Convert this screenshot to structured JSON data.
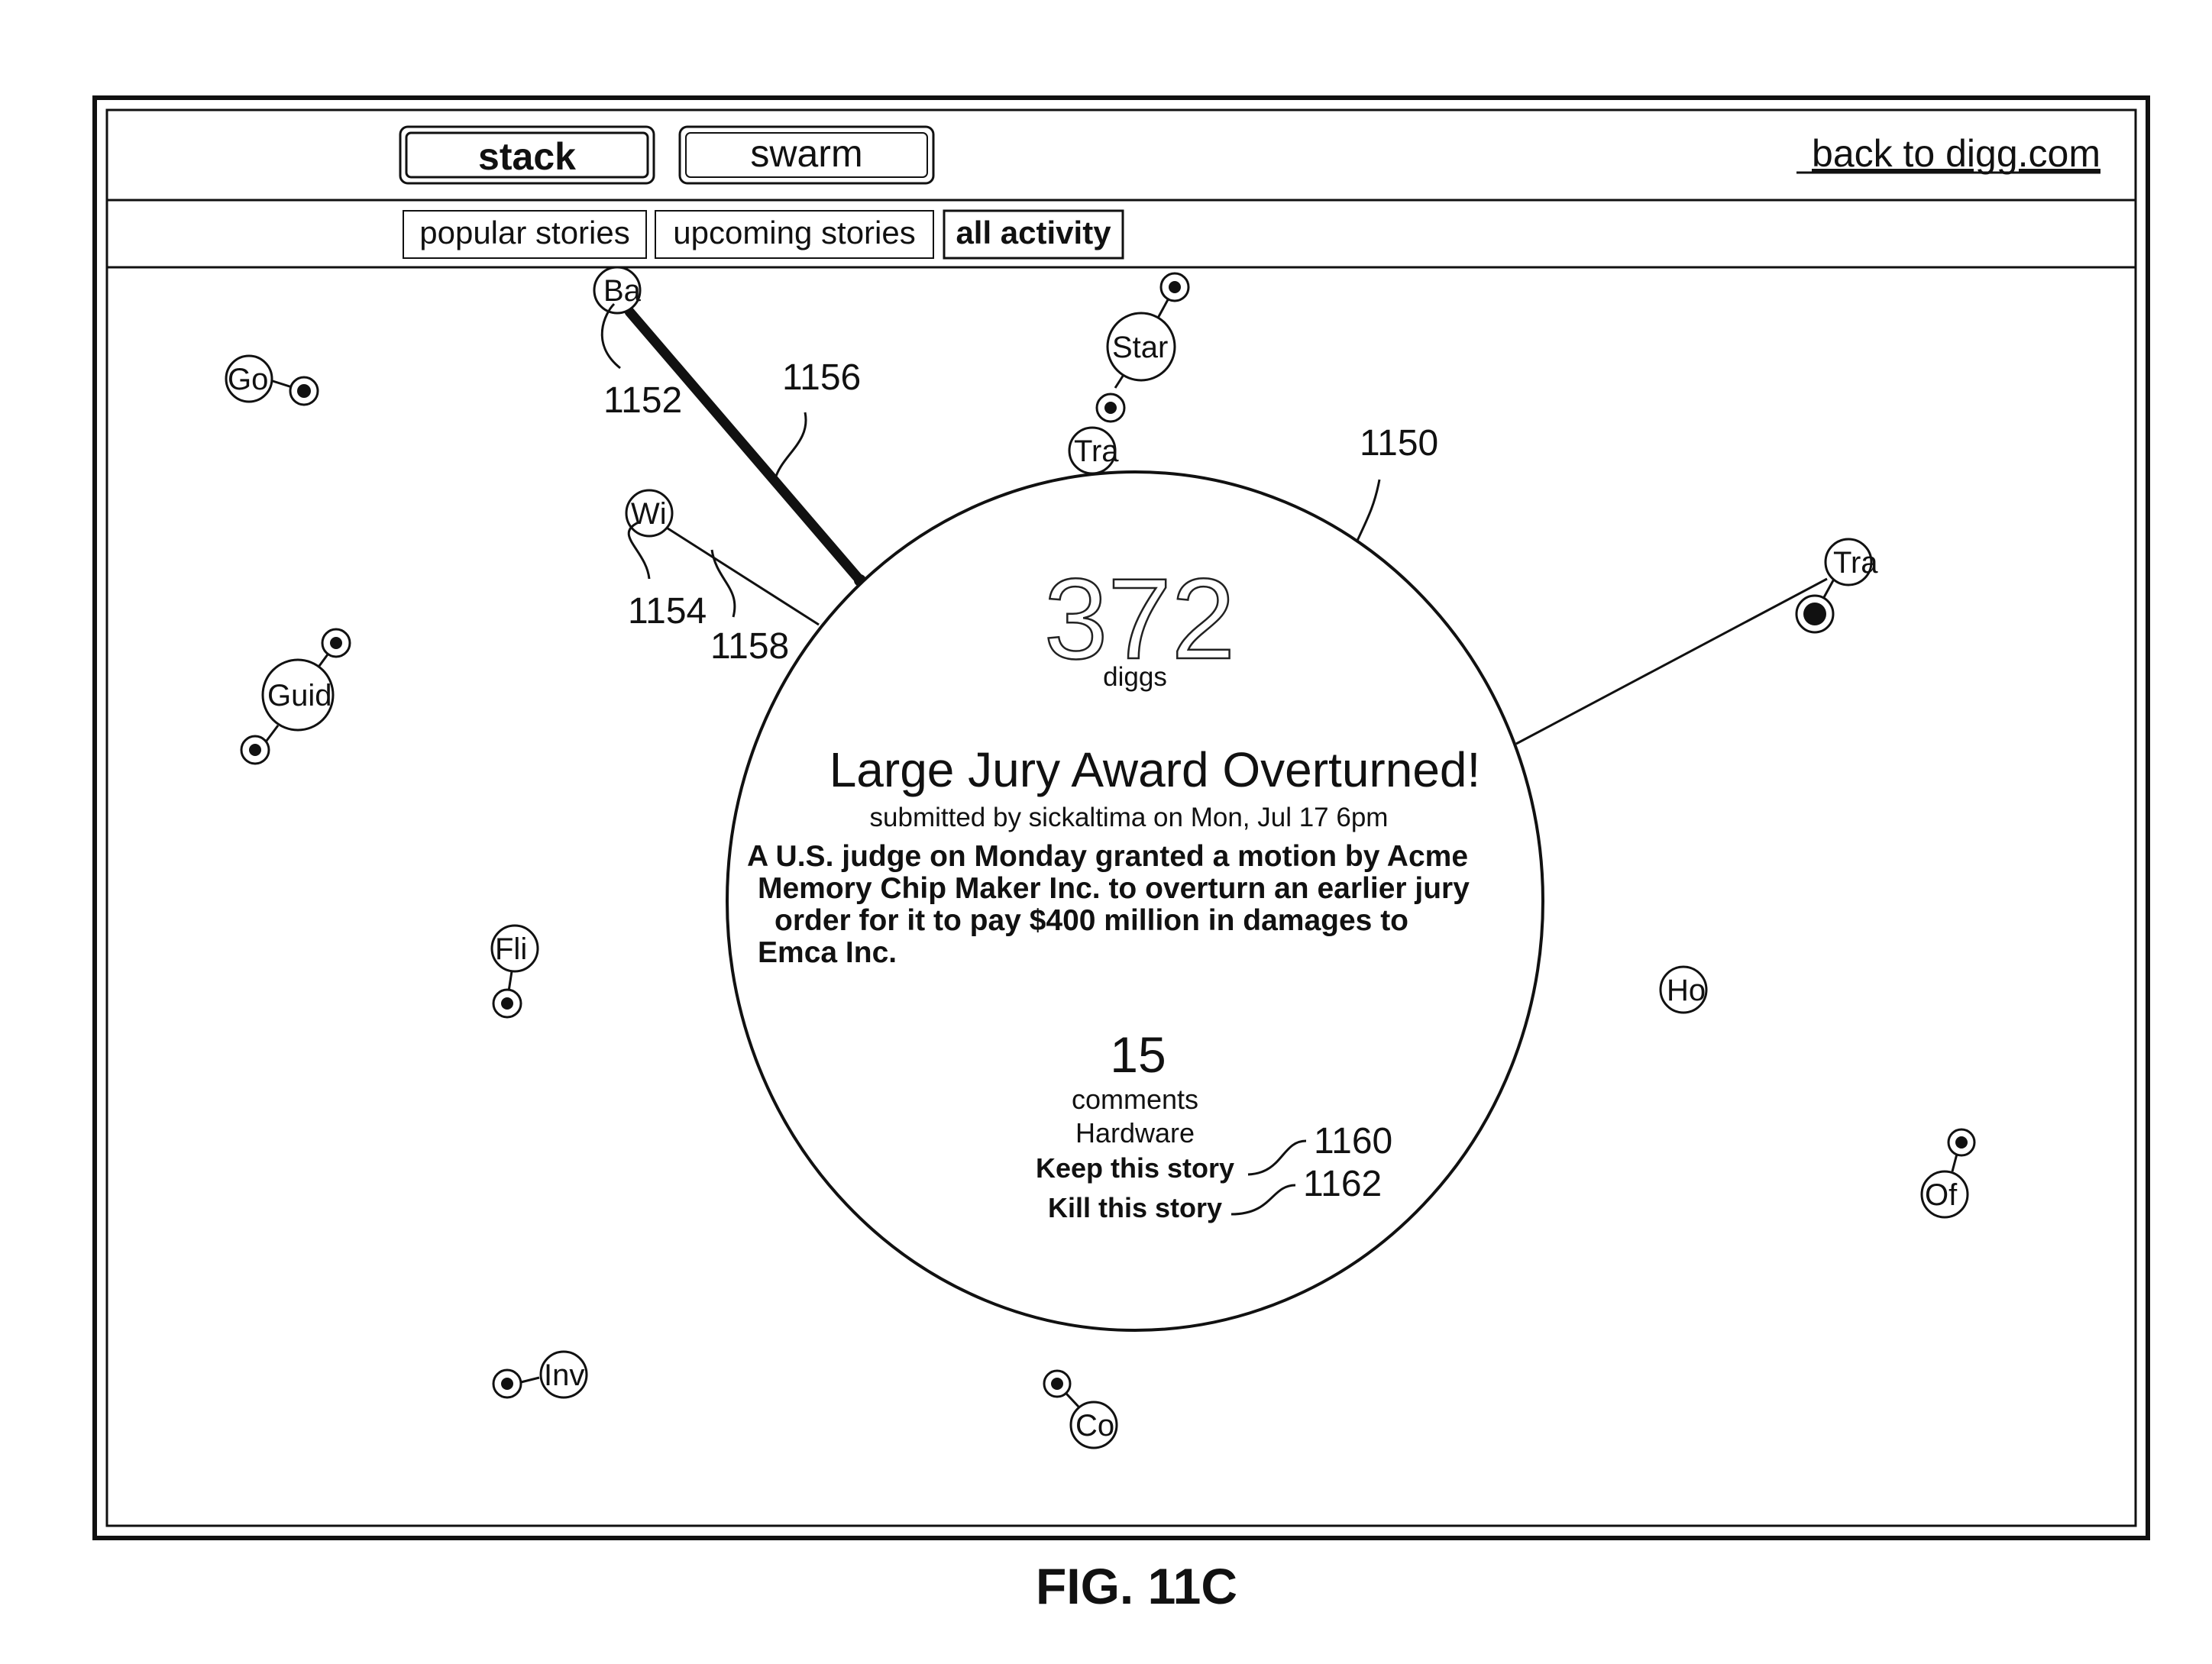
{
  "toolbar": {
    "stack_label": "stack",
    "swarm_label": "swarm",
    "back_link": "back to digg.com"
  },
  "tabs": {
    "popular": "popular stories",
    "upcoming": "upcoming stories",
    "all_activity": "all activity"
  },
  "story": {
    "digg_count": "372",
    "digg_unit": "diggs",
    "headline": "Large Jury Award Overturned!",
    "submitted": "submitted by sickaltima on Mon, Jul 17 6pm",
    "summary_lines": [
      "A U.S. judge on Monday granted a motion by Acme",
      "Memory Chip Maker Inc. to overturn an earlier jury",
      "order for it to pay $400 million in damages to",
      "Emca Inc."
    ],
    "comment_count": "15",
    "comment_unit": "comments",
    "category": "Hardware",
    "keep_action": "Keep this story",
    "kill_action": "Kill this story"
  },
  "nodes": {
    "ba": "Ba",
    "go": "Go",
    "star": "Star",
    "tra_top": "Tra",
    "wi": "Wi",
    "tra_right": "Tra",
    "guid": "Guid",
    "fli": "Fli",
    "ho": "Ho",
    "of": "Of",
    "inv": "Inv",
    "co": "Co"
  },
  "refs": {
    "r1150": "1150",
    "r1152": "1152",
    "r1154": "1154",
    "r1156": "1156",
    "r1158": "1158",
    "r1160": "1160",
    "r1162": "1162"
  },
  "figure": {
    "caption": "FIG. 11C"
  }
}
